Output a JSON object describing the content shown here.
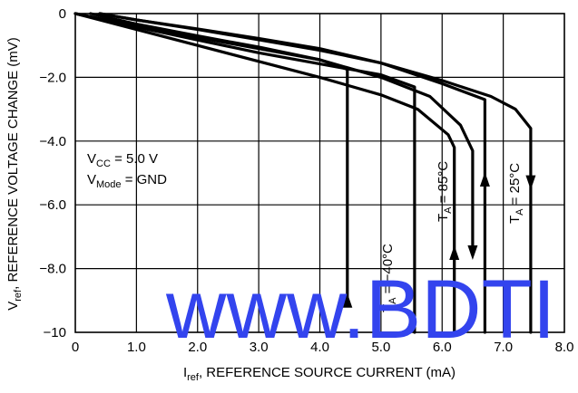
{
  "chart_data": {
    "type": "line",
    "xlabel": {
      "main": "I",
      "sub": "ref",
      "rest": ", REFERENCE SOURCE CURRENT (mA)"
    },
    "ylabel": {
      "main": "V",
      "sub": "ref",
      "rest": ", REFERENCE VOLTAGE CHANGE (mV)"
    },
    "xlim": [
      0,
      8
    ],
    "ylim": [
      -10,
      0
    ],
    "x_ticks": [
      {
        "value": 0,
        "label": "0"
      },
      {
        "value": 1,
        "label": "1.0"
      },
      {
        "value": 2,
        "label": "2.0"
      },
      {
        "value": 3,
        "label": "3.0"
      },
      {
        "value": 4,
        "label": "4.0"
      },
      {
        "value": 5,
        "label": "5.0"
      },
      {
        "value": 6,
        "label": "6.0"
      },
      {
        "value": 7,
        "label": "7.0"
      },
      {
        "value": 8,
        "label": "8.0"
      }
    ],
    "y_ticks": [
      {
        "value": 0,
        "label": "0"
      },
      {
        "value": -2,
        "label": "−2.0"
      },
      {
        "value": -4,
        "label": "−4.0"
      },
      {
        "value": -6,
        "label": "−6.0"
      },
      {
        "value": -8,
        "label": "−8.0"
      },
      {
        "value": -10,
        "label": "−10"
      }
    ],
    "grid": true,
    "conditions": [
      {
        "main": "V",
        "sub": "CC",
        "rest": " = 5.0 V"
      },
      {
        "main": "V",
        "sub": "Mode",
        "rest": " = GND"
      }
    ],
    "series": [
      {
        "name": {
          "main": "T",
          "sub": "A",
          "rest": " = −40°C"
        },
        "x": [
          0.0,
          1.0,
          2.0,
          3.0,
          4.0,
          4.45,
          4.45
        ],
        "y": [
          0.0,
          -0.38,
          -0.75,
          -1.1,
          -1.45,
          -1.75,
          -9.0
        ]
      },
      {
        "name": {
          "main": "T",
          "sub": "A",
          "rest": " = 85°C"
        },
        "x": [
          0.0,
          1.0,
          2.0,
          3.0,
          4.0,
          5.0,
          5.55,
          5.55
        ],
        "y": [
          0.0,
          -0.42,
          -0.83,
          -1.23,
          -1.58,
          -1.92,
          -2.3,
          -10.0
        ]
      },
      {
        "name": {
          "main": "T",
          "sub": "A",
          "rest": " = 25°C"
        },
        "x": [
          0.0,
          1.0,
          2.0,
          3.0,
          4.0,
          5.0,
          5.6,
          6.1,
          6.2,
          6.2
        ],
        "y": [
          0.0,
          -0.5,
          -1.0,
          -1.5,
          -2.0,
          -2.55,
          -3.0,
          -3.8,
          -4.2,
          -10.0
        ]
      },
      {
        "name": {
          "main": "T",
          "sub": "A",
          "rest": " = 25°C"
        },
        "x": [
          0.25,
          1.0,
          2.0,
          3.0,
          4.0,
          5.0,
          5.8,
          6.3,
          6.5,
          6.5
        ],
        "y": [
          0.0,
          -0.33,
          -0.7,
          -1.05,
          -1.45,
          -2.0,
          -2.6,
          -3.5,
          -4.3,
          -7.5
        ]
      },
      {
        "name": {
          "main": "T",
          "sub": "A",
          "rest": " = 25°C"
        },
        "x": [
          0.4,
          1.0,
          2.0,
          3.0,
          4.0,
          5.0,
          6.0,
          6.7,
          6.7
        ],
        "y": [
          0.0,
          -0.2,
          -0.48,
          -0.78,
          -1.1,
          -1.55,
          -2.2,
          -2.7,
          -10.0
        ]
      },
      {
        "name": {
          "main": "T",
          "sub": "A",
          "rest": " = 25°C"
        },
        "x": [
          0.4,
          1.0,
          2.0,
          3.0,
          4.0,
          5.0,
          6.0,
          6.8,
          7.2,
          7.45,
          7.45
        ],
        "y": [
          0.0,
          -0.2,
          -0.5,
          -0.82,
          -1.15,
          -1.55,
          -2.1,
          -2.6,
          -3.0,
          -3.6,
          -10.0
        ]
      }
    ],
    "arrows": [
      {
        "x": 4.45,
        "y": -9.0,
        "dir": "up"
      },
      {
        "x": 6.2,
        "y": -7.5,
        "dir": "up"
      },
      {
        "x": 6.5,
        "y": -7.5,
        "dir": "down"
      },
      {
        "x": 6.7,
        "y": -5.2,
        "dir": "up"
      },
      {
        "x": 7.45,
        "y": -5.3,
        "dir": "down"
      }
    ],
    "watermark": "www.BDTI"
  }
}
